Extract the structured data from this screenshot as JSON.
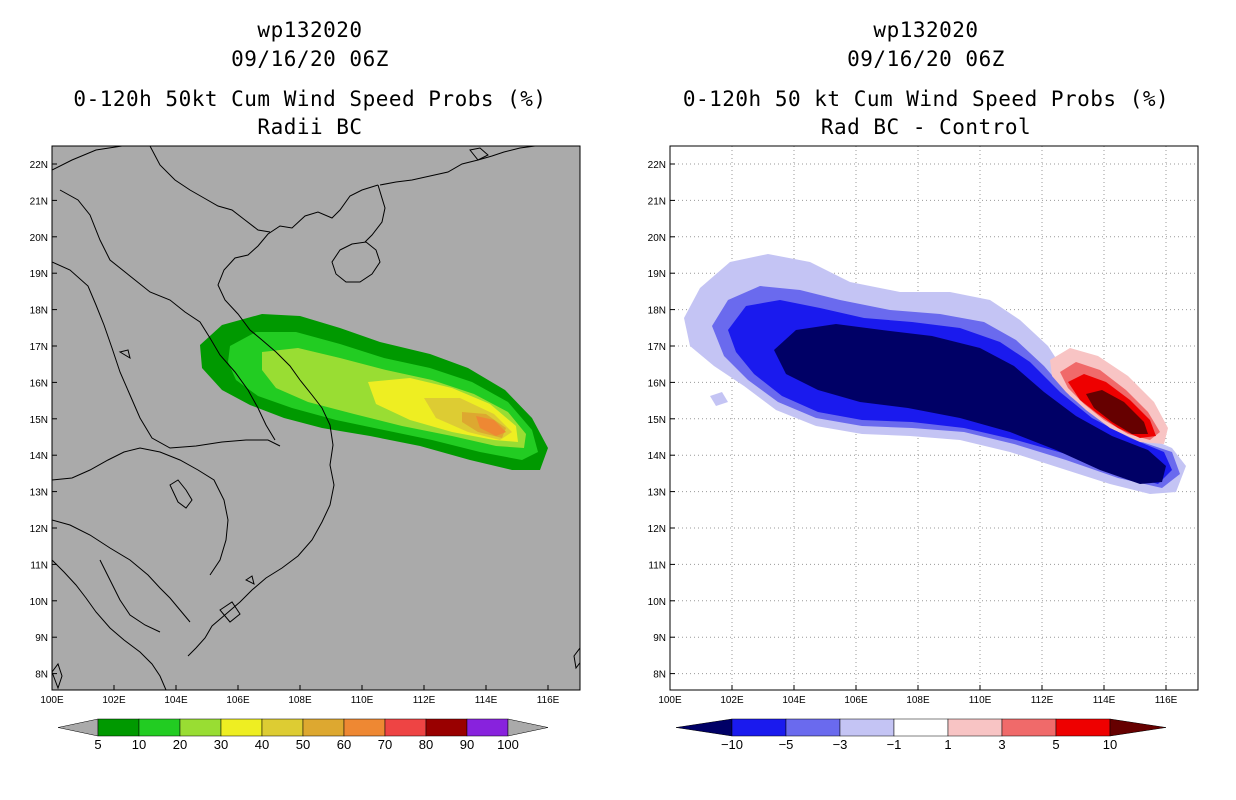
{
  "left_panel": {
    "storm_id": "wp132020",
    "datetime": "09/16/20 06Z",
    "title": "0-120h 50kt Cum Wind Speed Probs (%)",
    "subtitle": "Radii BC",
    "x_ticks": [
      "100E",
      "102E",
      "104E",
      "106E",
      "108E",
      "110E",
      "112E",
      "114E",
      "116E"
    ],
    "y_ticks": [
      "22N",
      "21N",
      "20N",
      "19N",
      "18N",
      "17N",
      "16N",
      "15N",
      "14N",
      "13N",
      "12N",
      "11N",
      "10N",
      "9N",
      "8N"
    ],
    "colorbar": {
      "labels": [
        "5",
        "10",
        "20",
        "30",
        "40",
        "50",
        "60",
        "70",
        "80",
        "90",
        "100"
      ],
      "colors": [
        "#009900",
        "#22cc22",
        "#99dd33",
        "#eeee22",
        "#ddcc33",
        "#dda830",
        "#ee8833",
        "#ee4444",
        "#990000",
        "#8822dd"
      ],
      "end_color": "#aaaaaa"
    },
    "background_color": "#aaaaaa"
  },
  "right_panel": {
    "storm_id": "wp132020",
    "datetime": "09/16/20 06Z",
    "title": "0-120h 50 kt Cum Wind Speed Probs (%)",
    "subtitle": "Rad BC - Control",
    "x_ticks": [
      "100E",
      "102E",
      "104E",
      "106E",
      "108E",
      "110E",
      "112E",
      "114E",
      "116E"
    ],
    "y_ticks": [
      "22N",
      "21N",
      "20N",
      "19N",
      "18N",
      "17N",
      "16N",
      "15N",
      "14N",
      "13N",
      "12N",
      "11N",
      "10N",
      "9N",
      "8N"
    ],
    "colorbar": {
      "labels": [
        "−10",
        "−5",
        "−3",
        "−1",
        "1",
        "3",
        "5",
        "10"
      ],
      "colors": [
        "#1a1aee",
        "#6a6aee",
        "#c4c4f4",
        "#ffffff",
        "#f8c4c4",
        "#f06a6a",
        "#ee0000"
      ],
      "end_low": "#000066",
      "end_high": "#660000"
    },
    "background_color": "#ffffff"
  }
}
